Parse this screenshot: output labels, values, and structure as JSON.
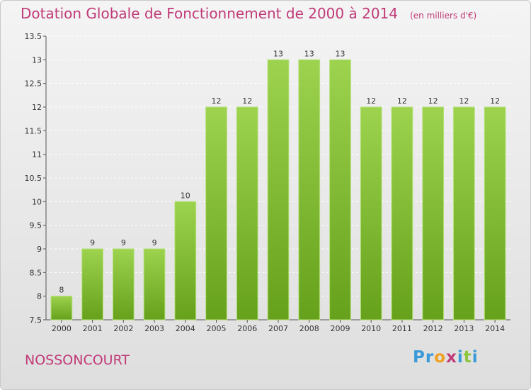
{
  "chart_data": {
    "type": "bar",
    "title": "Dotation Globale de Fonctionnement de 2000 à 2014",
    "subtitle": "(en milliers d'€)",
    "categories": [
      "2000",
      "2001",
      "2002",
      "2003",
      "2004",
      "2005",
      "2006",
      "2007",
      "2008",
      "2009",
      "2010",
      "2011",
      "2012",
      "2013",
      "2014"
    ],
    "values": [
      8,
      9,
      9,
      9,
      10,
      12,
      12,
      13,
      13,
      13,
      12,
      12,
      12,
      12,
      12
    ],
    "data_labels": [
      "8",
      "9",
      "9",
      "9",
      "10",
      "12",
      "12",
      "13",
      "13",
      "13",
      "12",
      "12",
      "12",
      "12",
      "12"
    ],
    "yticks": [
      7.5,
      8,
      8.5,
      9,
      9.5,
      10,
      10.5,
      11,
      11.5,
      12,
      12.5,
      13,
      13.5
    ],
    "ylim": [
      7.5,
      13.5
    ],
    "grid": true,
    "bar_color": "#8cc63f"
  },
  "footer": {
    "commune": "NOSSONCOURT",
    "brand_letters": [
      {
        "char": "P",
        "color": "#3a9ad9"
      },
      {
        "char": "r",
        "color": "#3a9ad9"
      },
      {
        "char": "o",
        "color": "#f0a020"
      },
      {
        "char": "x",
        "color": "#c03a78"
      },
      {
        "char": "i",
        "color": "#3a9ad9"
      },
      {
        "char": "t",
        "color": "#8cc63f"
      },
      {
        "char": "i",
        "color": "#3a9ad9"
      }
    ]
  },
  "colors": {
    "title": "#c03a78",
    "axis": "#555555",
    "grid": "#ffffff"
  }
}
